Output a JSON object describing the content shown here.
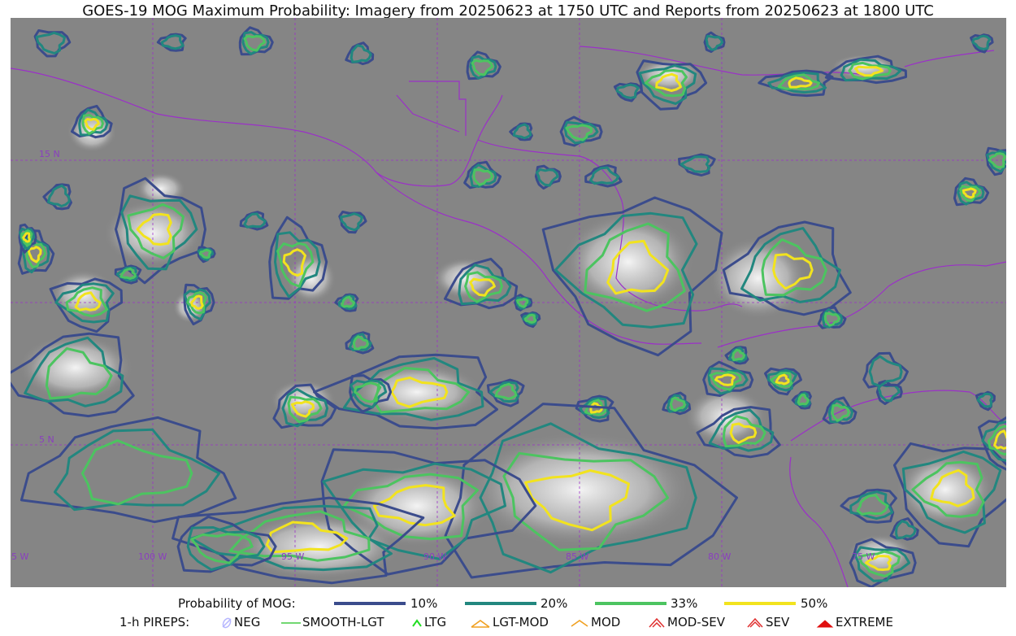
{
  "title": "GOES-19 MOG Maximum Probability: Imagery from 20250623 at 1750 UTC and Reports from 20250623 at 1800 UTC",
  "map": {
    "lat_labels": [
      "15 N",
      "5 N"
    ],
    "lon_labels": [
      "105 W",
      "100 W",
      "95 W",
      "90 W",
      "85 W",
      "80 W",
      "75 W"
    ],
    "colors": {
      "p10": "#3b4c8c",
      "p20": "#22877f",
      "p33": "#4cc460",
      "p50": "#f2e31e",
      "borders": "#9b30c8",
      "grid": "#9b30c8"
    }
  },
  "legend": {
    "probability_label": "Probability of MOG:",
    "levels": [
      {
        "label": "10%",
        "color": "#3b4c8c"
      },
      {
        "label": "20%",
        "color": "#22877f"
      },
      {
        "label": "33%",
        "color": "#4cc460"
      },
      {
        "label": "50%",
        "color": "#f2e31e"
      }
    ],
    "pireps_label": "1-h PIREPS:",
    "pireps": [
      {
        "label": "NEG",
        "icon": "neg-icon",
        "color": "#b7b7ff"
      },
      {
        "label": "SMOOTH-LGT",
        "icon": "smooth-lgt-icon",
        "color": "#44cc44"
      },
      {
        "label": "LTG",
        "icon": "ltg-icon",
        "color": "#22dd22"
      },
      {
        "label": "LGT-MOD",
        "icon": "lgt-mod-icon",
        "color": "#f0a020"
      },
      {
        "label": "MOD",
        "icon": "mod-icon",
        "color": "#f0a020"
      },
      {
        "label": "MOD-SEV",
        "icon": "mod-sev-icon",
        "color": "#e03030"
      },
      {
        "label": "SEV",
        "icon": "sev-icon",
        "color": "#e03030"
      },
      {
        "label": "EXTREME",
        "icon": "extreme-icon",
        "color": "#e01010"
      }
    ]
  }
}
